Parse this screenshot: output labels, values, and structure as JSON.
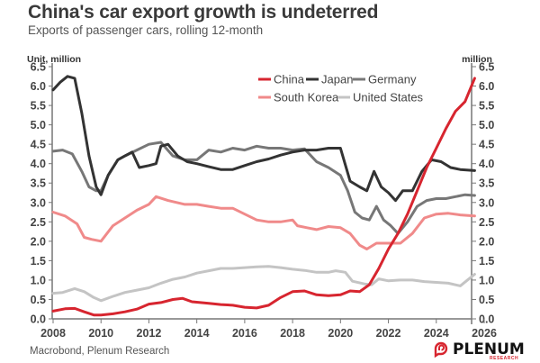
{
  "header": {
    "title": "China's car export growth is undeterred",
    "subtitle": "Exports of passenger cars, rolling 12-month"
  },
  "footer": {
    "source": "Macrobond, Plenum Research",
    "logo_text": "PLENUM",
    "logo_subtext": "RESEARCH",
    "logo_icon": "speech-bubble-icon"
  },
  "colors": {
    "China": "#d7252f",
    "Japan": "#333333",
    "Germany": "#777777",
    "South Korea": "#f08a8a",
    "United States": "#c4c4c4",
    "axis": "#777777",
    "text": "#444444"
  },
  "chart_data": {
    "type": "line",
    "title": "China's car export growth is undeterred",
    "subtitle": "Exports of passenger cars, rolling 12-month",
    "ylabel_left": "Unit, million",
    "ylabel_right": "million",
    "xlabel": "",
    "xlim": [
      2008,
      2026
    ],
    "ylim": [
      0,
      6.5
    ],
    "x_ticks": [
      "2008",
      "2010",
      "2012",
      "2014",
      "2016",
      "2018",
      "2020",
      "2022",
      "2024",
      "2026"
    ],
    "y_ticks": [
      "0.0",
      "0.5",
      "1.0",
      "1.5",
      "2.0",
      "2.5",
      "3.0",
      "3.5",
      "4.0",
      "4.5",
      "5.0",
      "5.5",
      "6.0",
      "6.5"
    ],
    "grid": false,
    "legend": "top-right",
    "series": [
      {
        "name": "China",
        "x": [
          2008.0,
          2008.5,
          2008.9,
          2009.3,
          2009.7,
          2010.0,
          2010.5,
          2011.0,
          2011.5,
          2012.0,
          2012.5,
          2013.0,
          2013.4,
          2013.8,
          2014.5,
          2015.0,
          2015.5,
          2016.0,
          2016.5,
          2017.0,
          2017.5,
          2018.0,
          2018.5,
          2019.0,
          2019.5,
          2020.0,
          2020.4,
          2020.8,
          2021.2,
          2021.6,
          2022.0,
          2022.4,
          2022.8,
          2023.2,
          2023.6,
          2024.0,
          2024.4,
          2024.8,
          2025.2,
          2025.6
        ],
        "values": [
          0.2,
          0.26,
          0.27,
          0.18,
          0.1,
          0.1,
          0.13,
          0.18,
          0.25,
          0.38,
          0.42,
          0.5,
          0.53,
          0.44,
          0.4,
          0.37,
          0.35,
          0.3,
          0.28,
          0.35,
          0.55,
          0.7,
          0.72,
          0.62,
          0.6,
          0.62,
          0.72,
          0.7,
          0.88,
          1.3,
          1.8,
          2.2,
          2.7,
          3.3,
          3.9,
          4.4,
          4.9,
          5.35,
          5.6,
          6.2
        ]
      },
      {
        "name": "Japan",
        "x": [
          2008.0,
          2008.3,
          2008.6,
          2008.9,
          2009.2,
          2009.5,
          2009.8,
          2010.0,
          2010.3,
          2010.7,
          2011.0,
          2011.3,
          2011.6,
          2012.0,
          2012.3,
          2012.5,
          2012.8,
          2013.2,
          2013.6,
          2014.0,
          2014.5,
          2015.0,
          2015.5,
          2016.0,
          2016.5,
          2017.0,
          2017.5,
          2018.0,
          2018.5,
          2019.0,
          2019.5,
          2020.0,
          2020.4,
          2020.8,
          2021.1,
          2021.4,
          2021.7,
          2022.0,
          2022.3,
          2022.6,
          2023.0,
          2023.4,
          2023.8,
          2024.2,
          2024.6,
          2025.0,
          2025.6
        ],
        "values": [
          5.9,
          6.1,
          6.25,
          6.2,
          5.3,
          4.2,
          3.4,
          3.2,
          3.7,
          4.1,
          4.2,
          4.3,
          3.9,
          3.95,
          4.0,
          4.45,
          4.5,
          4.2,
          4.05,
          4.0,
          3.92,
          3.85,
          3.85,
          3.95,
          4.05,
          4.12,
          4.22,
          4.3,
          4.35,
          4.35,
          4.4,
          4.4,
          3.55,
          3.4,
          3.3,
          3.8,
          3.4,
          3.25,
          3.05,
          3.3,
          3.3,
          3.8,
          4.1,
          4.05,
          3.9,
          3.85,
          3.82
        ]
      },
      {
        "name": "Germany",
        "x": [
          2008.0,
          2008.4,
          2008.8,
          2009.2,
          2009.5,
          2009.8,
          2010.0,
          2010.3,
          2010.7,
          2011.0,
          2011.5,
          2012.0,
          2012.5,
          2013.0,
          2013.5,
          2014.0,
          2014.5,
          2015.0,
          2015.5,
          2016.0,
          2016.5,
          2017.0,
          2017.5,
          2018.0,
          2018.5,
          2019.0,
          2019.5,
          2020.0,
          2020.3,
          2020.6,
          2020.9,
          2021.2,
          2021.5,
          2021.8,
          2022.1,
          2022.4,
          2022.8,
          2023.2,
          2023.6,
          2024.0,
          2024.4,
          2024.8,
          2025.2,
          2025.6
        ],
        "values": [
          4.32,
          4.35,
          4.25,
          3.8,
          3.4,
          3.3,
          3.3,
          3.7,
          4.1,
          4.2,
          4.35,
          4.5,
          4.55,
          4.2,
          4.1,
          4.1,
          4.35,
          4.3,
          4.4,
          4.35,
          4.45,
          4.4,
          4.4,
          4.35,
          4.38,
          4.05,
          3.9,
          3.7,
          3.3,
          2.75,
          2.6,
          2.55,
          2.9,
          2.55,
          2.4,
          2.2,
          2.5,
          2.9,
          3.05,
          3.1,
          3.1,
          3.15,
          3.2,
          3.18
        ]
      },
      {
        "name": "South Korea",
        "x": [
          2008.0,
          2008.5,
          2009.0,
          2009.3,
          2009.6,
          2010.0,
          2010.5,
          2011.0,
          2011.5,
          2012.0,
          2012.3,
          2012.8,
          2013.5,
          2014.0,
          2014.5,
          2015.0,
          2015.5,
          2016.0,
          2016.5,
          2017.0,
          2017.5,
          2018.0,
          2018.2,
          2018.6,
          2019.0,
          2019.5,
          2020.0,
          2020.4,
          2020.8,
          2021.1,
          2021.5,
          2022.0,
          2022.5,
          2023.0,
          2023.5,
          2024.0,
          2024.5,
          2025.0,
          2025.6
        ],
        "values": [
          2.75,
          2.65,
          2.45,
          2.1,
          2.05,
          2.0,
          2.4,
          2.6,
          2.8,
          2.95,
          3.15,
          3.05,
          2.95,
          2.95,
          2.9,
          2.85,
          2.85,
          2.7,
          2.55,
          2.5,
          2.5,
          2.55,
          2.4,
          2.35,
          2.3,
          2.38,
          2.35,
          2.2,
          1.9,
          1.8,
          1.95,
          1.95,
          1.95,
          2.2,
          2.6,
          2.7,
          2.72,
          2.68,
          2.65
        ]
      },
      {
        "name": "United States",
        "x": [
          2008.0,
          2008.4,
          2008.9,
          2009.3,
          2009.7,
          2010.0,
          2010.5,
          2011.0,
          2011.5,
          2012.0,
          2012.5,
          2013.0,
          2013.5,
          2014.0,
          2014.5,
          2015.0,
          2015.5,
          2016.0,
          2016.5,
          2017.0,
          2017.5,
          2018.0,
          2018.5,
          2019.0,
          2019.5,
          2019.8,
          2020.2,
          2020.5,
          2021.0,
          2021.3,
          2021.6,
          2022.0,
          2022.5,
          2023.0,
          2023.5,
          2024.0,
          2024.5,
          2025.0,
          2025.3,
          2025.6
        ],
        "values": [
          0.66,
          0.68,
          0.78,
          0.7,
          0.55,
          0.47,
          0.58,
          0.68,
          0.74,
          0.8,
          0.92,
          1.02,
          1.08,
          1.18,
          1.24,
          1.3,
          1.3,
          1.32,
          1.34,
          1.35,
          1.32,
          1.28,
          1.25,
          1.2,
          1.2,
          1.24,
          1.2,
          0.97,
          0.9,
          0.88,
          1.03,
          0.98,
          1.0,
          1.0,
          0.96,
          0.94,
          0.92,
          0.85,
          1.0,
          1.15
        ]
      }
    ]
  }
}
